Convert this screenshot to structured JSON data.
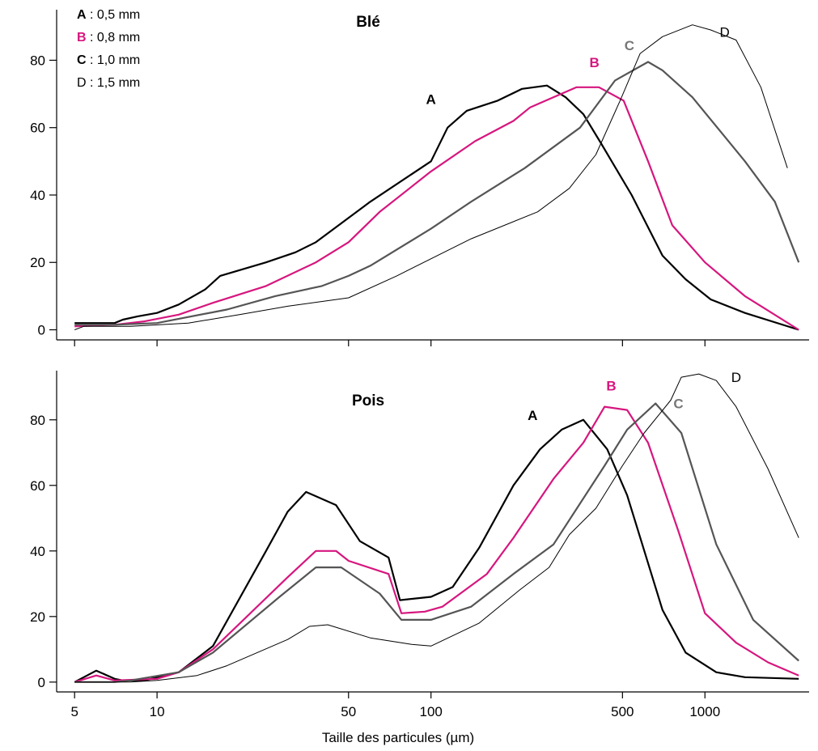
{
  "chart_data": [
    {
      "type": "line",
      "title": "Blé",
      "xscale": "log",
      "xlim": [
        4.3,
        2400
      ],
      "ylim": [
        -3,
        95
      ],
      "yticks": [
        0,
        20,
        40,
        60,
        80
      ],
      "xticks": [
        5,
        10,
        50,
        100,
        500,
        1000
      ],
      "xtick_labels": [],
      "legend_position": "top-left",
      "legend": [
        {
          "key": "A",
          "text": " : 0,5 mm",
          "key_color": "#000000",
          "key_bold": true
        },
        {
          "key": "B",
          "text": " : 0,8 mm",
          "key_color": "#d6167e",
          "key_bold": true
        },
        {
          "key": "C",
          "text": " : 1,0 mm",
          "key_color": "#000000",
          "key_bold": true
        },
        {
          "key": "D",
          "text": " : 1,5 mm",
          "key_color": "#000000",
          "key_bold": false
        }
      ],
      "series": [
        {
          "name": "A",
          "color": "#000000",
          "width": 2.2,
          "label": {
            "x": 100,
            "y": 67,
            "color": "#000000"
          },
          "points": [
            [
              5,
              2
            ],
            [
              6,
              2
            ],
            [
              7,
              2
            ],
            [
              7.5,
              3
            ],
            [
              8.5,
              4
            ],
            [
              10,
              5
            ],
            [
              12,
              7.5
            ],
            [
              15,
              12
            ],
            [
              17,
              16
            ],
            [
              25,
              20
            ],
            [
              32,
              23
            ],
            [
              38,
              26
            ],
            [
              60,
              38
            ],
            [
              100,
              50
            ],
            [
              115,
              60
            ],
            [
              135,
              65
            ],
            [
              175,
              68
            ],
            [
              215,
              71.5
            ],
            [
              265,
              72.5
            ],
            [
              310,
              69
            ],
            [
              360,
              64
            ],
            [
              420,
              55
            ],
            [
              540,
              40
            ],
            [
              700,
              22
            ],
            [
              850,
              15
            ],
            [
              1050,
              9
            ],
            [
              1400,
              5
            ],
            [
              2200,
              0
            ]
          ]
        },
        {
          "name": "B",
          "color": "#d6167e",
          "width": 2.2,
          "label": {
            "x": 395,
            "y": 78,
            "color": "#d6167e"
          },
          "points": [
            [
              5,
              1
            ],
            [
              7,
              1.5
            ],
            [
              9,
              2.5
            ],
            [
              12,
              4.5
            ],
            [
              16,
              8
            ],
            [
              25,
              13
            ],
            [
              38,
              20
            ],
            [
              50,
              26
            ],
            [
              65,
              35
            ],
            [
              100,
              47
            ],
            [
              145,
              56
            ],
            [
              200,
              62
            ],
            [
              230,
              66
            ],
            [
              340,
              72
            ],
            [
              410,
              72
            ],
            [
              505,
              68
            ],
            [
              620,
              50
            ],
            [
              760,
              31
            ],
            [
              1000,
              20
            ],
            [
              1400,
              10
            ],
            [
              2200,
              0
            ]
          ]
        },
        {
          "name": "C",
          "color": "#555555",
          "width": 2.2,
          "label": {
            "x": 530,
            "y": 83,
            "color": "#777777"
          },
          "points": [
            [
              5,
              1.5
            ],
            [
              7,
              1.5
            ],
            [
              10,
              2
            ],
            [
              18,
              6
            ],
            [
              27,
              10
            ],
            [
              40,
              13
            ],
            [
              50,
              16
            ],
            [
              60,
              19
            ],
            [
              100,
              30
            ],
            [
              140,
              38
            ],
            [
              220,
              48
            ],
            [
              350,
              60
            ],
            [
              470,
              74
            ],
            [
              620,
              79.5
            ],
            [
              700,
              77
            ],
            [
              900,
              69
            ],
            [
              1400,
              50
            ],
            [
              1800,
              38
            ],
            [
              2200,
              20
            ]
          ]
        },
        {
          "name": "D",
          "color": "#000000",
          "width": 1,
          "label": {
            "x": 1180,
            "y": 87,
            "color": "#000000"
          },
          "points": [
            [
              5,
              0
            ],
            [
              5.4,
              1
            ],
            [
              8,
              1
            ],
            [
              13,
              2
            ],
            [
              20,
              4.5
            ],
            [
              30,
              7
            ],
            [
              50,
              9.5
            ],
            [
              75,
              16
            ],
            [
              140,
              27
            ],
            [
              245,
              35
            ],
            [
              320,
              42
            ],
            [
              400,
              52
            ],
            [
              490,
              68
            ],
            [
              580,
              82
            ],
            [
              700,
              87
            ],
            [
              900,
              90.5
            ],
            [
              1050,
              89
            ],
            [
              1300,
              86
            ],
            [
              1600,
              72
            ],
            [
              2000,
              48
            ]
          ]
        }
      ]
    },
    {
      "type": "line",
      "title": "Pois",
      "xscale": "log",
      "xlim": [
        4.3,
        2400
      ],
      "ylim": [
        -3,
        95
      ],
      "yticks": [
        0,
        20,
        40,
        60,
        80
      ],
      "xticks": [
        5,
        10,
        50,
        100,
        500,
        1000
      ],
      "xtick_labels": [
        "5",
        "10",
        "50",
        "100",
        "500",
        "1000"
      ],
      "xlabel": "Taille des particules (µm)",
      "series": [
        {
          "name": "A",
          "color": "#000000",
          "width": 2.2,
          "label": {
            "x": 235,
            "y": 80,
            "color": "#000000"
          },
          "points": [
            [
              5,
              0
            ],
            [
              6,
              3.5
            ],
            [
              7,
              1
            ],
            [
              7.5,
              0.5
            ],
            [
              9,
              0.5
            ],
            [
              12,
              3
            ],
            [
              16,
              11
            ],
            [
              25,
              40
            ],
            [
              30,
              52
            ],
            [
              35,
              58
            ],
            [
              45,
              54
            ],
            [
              55,
              43
            ],
            [
              70,
              38
            ],
            [
              77,
              25
            ],
            [
              100,
              26
            ],
            [
              120,
              29
            ],
            [
              150,
              41
            ],
            [
              200,
              60
            ],
            [
              250,
              71
            ],
            [
              300,
              77
            ],
            [
              360,
              80
            ],
            [
              440,
              71
            ],
            [
              520,
              57
            ],
            [
              700,
              22
            ],
            [
              850,
              9
            ],
            [
              1100,
              3
            ],
            [
              1400,
              1.5
            ],
            [
              2200,
              1
            ]
          ]
        },
        {
          "name": "B",
          "color": "#d6167e",
          "width": 2.2,
          "label": {
            "x": 455,
            "y": 89,
            "color": "#d6167e"
          },
          "points": [
            [
              5,
              0
            ],
            [
              6,
              2
            ],
            [
              7,
              0.5
            ],
            [
              10,
              1
            ],
            [
              12,
              3
            ],
            [
              16,
              10
            ],
            [
              30,
              32
            ],
            [
              38,
              40
            ],
            [
              45,
              40
            ],
            [
              50,
              37
            ],
            [
              70,
              33
            ],
            [
              78,
              21
            ],
            [
              95,
              21.5
            ],
            [
              110,
              23
            ],
            [
              160,
              33
            ],
            [
              200,
              44
            ],
            [
              280,
              62
            ],
            [
              360,
              73
            ],
            [
              430,
              84
            ],
            [
              520,
              83
            ],
            [
              620,
              73
            ],
            [
              800,
              46
            ],
            [
              1000,
              21
            ],
            [
              1300,
              12
            ],
            [
              1700,
              6
            ],
            [
              2200,
              2
            ]
          ]
        },
        {
          "name": "C",
          "color": "#555555",
          "width": 2.2,
          "label": {
            "x": 800,
            "y": 83.5,
            "color": "#777777"
          },
          "points": [
            [
              5,
              0
            ],
            [
              7,
              0
            ],
            [
              8,
              0.5
            ],
            [
              12,
              3
            ],
            [
              16,
              9
            ],
            [
              28,
              26
            ],
            [
              38,
              35
            ],
            [
              47,
              35
            ],
            [
              65,
              27
            ],
            [
              78,
              19
            ],
            [
              100,
              19
            ],
            [
              140,
              23
            ],
            [
              200,
              33
            ],
            [
              280,
              42
            ],
            [
              430,
              66
            ],
            [
              520,
              77
            ],
            [
              660,
              85
            ],
            [
              820,
              76
            ],
            [
              1100,
              42
            ],
            [
              1500,
              19
            ],
            [
              2200,
              6.5
            ]
          ]
        },
        {
          "name": "D",
          "color": "#000000",
          "width": 1,
          "label": {
            "x": 1300,
            "y": 91.5,
            "color": "#000000"
          },
          "points": [
            [
              5,
              0
            ],
            [
              8,
              0
            ],
            [
              10,
              0.5
            ],
            [
              14,
              2
            ],
            [
              18,
              5
            ],
            [
              30,
              13
            ],
            [
              36,
              17
            ],
            [
              42,
              17.5
            ],
            [
              60,
              13.5
            ],
            [
              85,
              11.5
            ],
            [
              100,
              11
            ],
            [
              150,
              18
            ],
            [
              210,
              28
            ],
            [
              270,
              35
            ],
            [
              320,
              45
            ],
            [
              400,
              53
            ],
            [
              500,
              66
            ],
            [
              600,
              76
            ],
            [
              750,
              86
            ],
            [
              820,
              93
            ],
            [
              950,
              94
            ],
            [
              1100,
              92
            ],
            [
              1300,
              84
            ],
            [
              1700,
              65
            ],
            [
              2200,
              44
            ]
          ]
        }
      ]
    }
  ]
}
